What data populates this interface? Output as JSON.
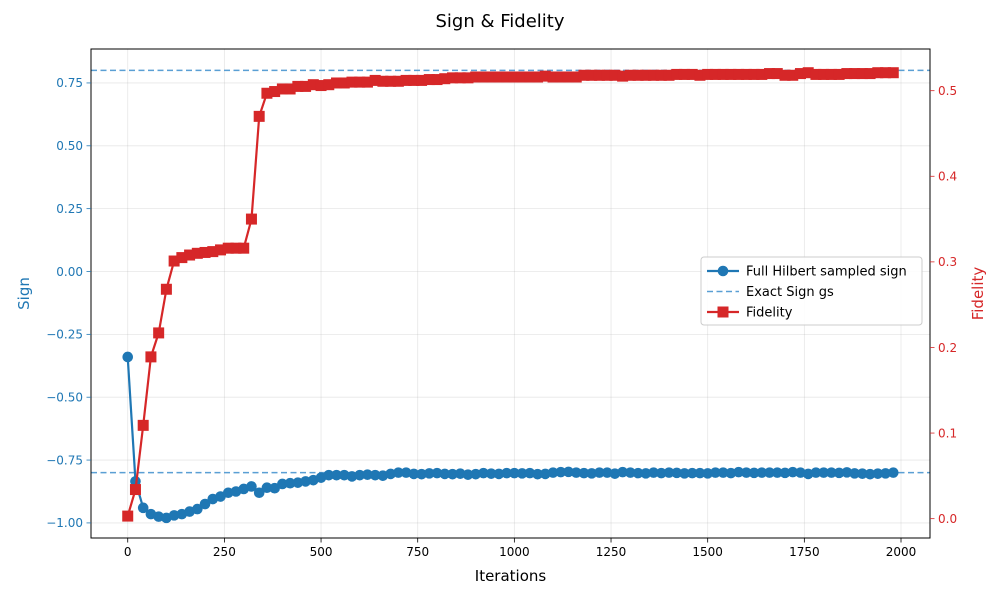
{
  "chart_data": {
    "type": "line",
    "title": "Sign & Fidelity",
    "xlabel": "Iterations",
    "ylabel_left": "Sign",
    "ylabel_right": "Fidelity",
    "xlim": [
      -95,
      2075
    ],
    "ylim_left": [
      -1.06,
      0.885
    ],
    "ylim_right": [
      -0.0226,
      0.5487
    ],
    "x_ticks": [
      0,
      250,
      500,
      750,
      1000,
      1250,
      1500,
      1750,
      2000
    ],
    "x_tick_labels": [
      "0",
      "250",
      "500",
      "750",
      "1000",
      "1250",
      "1500",
      "1750",
      "2000"
    ],
    "y_left_ticks": [
      -1.0,
      -0.75,
      -0.5,
      -0.25,
      0.0,
      0.25,
      0.5,
      0.75
    ],
    "y_left_tick_labels": [
      "−1.00",
      "−0.75",
      "−0.50",
      "−0.25",
      "0.00",
      "0.25",
      "0.50",
      "0.75"
    ],
    "y_right_ticks": [
      0.0,
      0.1,
      0.2,
      0.3,
      0.4,
      0.5
    ],
    "y_right_tick_labels": [
      "0.0",
      "0.1",
      "0.2",
      "0.3",
      "0.4",
      "0.5"
    ],
    "grid": true,
    "legend_position": "center-right",
    "reference_lines": [
      {
        "axis": "left",
        "y": 0.8
      },
      {
        "axis": "left",
        "y": -0.8
      }
    ],
    "x": [
      0,
      20,
      40,
      60,
      80,
      100,
      120,
      140,
      160,
      180,
      200,
      220,
      240,
      260,
      280,
      300,
      320,
      340,
      360,
      380,
      400,
      420,
      440,
      460,
      480,
      500,
      520,
      540,
      560,
      580,
      600,
      620,
      640,
      660,
      680,
      700,
      720,
      740,
      760,
      780,
      800,
      820,
      840,
      860,
      880,
      900,
      920,
      940,
      960,
      980,
      1000,
      1020,
      1040,
      1060,
      1080,
      1100,
      1120,
      1140,
      1160,
      1180,
      1200,
      1220,
      1240,
      1260,
      1280,
      1300,
      1320,
      1340,
      1360,
      1380,
      1400,
      1420,
      1440,
      1460,
      1480,
      1500,
      1520,
      1540,
      1560,
      1580,
      1600,
      1620,
      1640,
      1660,
      1680,
      1700,
      1720,
      1740,
      1760,
      1780,
      1800,
      1820,
      1840,
      1860,
      1880,
      1900,
      1920,
      1940,
      1960,
      1980
    ],
    "series": [
      {
        "name": "Full Hilbert sampled sign",
        "axis": "left",
        "style": "line-circle",
        "color": "#1f77b4",
        "values": [
          -0.34,
          -0.835,
          -0.94,
          -0.965,
          -0.975,
          -0.98,
          -0.97,
          -0.965,
          -0.955,
          -0.945,
          -0.925,
          -0.905,
          -0.895,
          -0.88,
          -0.875,
          -0.865,
          -0.855,
          -0.88,
          -0.86,
          -0.862,
          -0.845,
          -0.842,
          -0.84,
          -0.835,
          -0.83,
          -0.82,
          -0.81,
          -0.81,
          -0.81,
          -0.815,
          -0.81,
          -0.808,
          -0.81,
          -0.812,
          -0.805,
          -0.8,
          -0.8,
          -0.805,
          -0.806,
          -0.803,
          -0.802,
          -0.805,
          -0.806,
          -0.804,
          -0.808,
          -0.806,
          -0.802,
          -0.804,
          -0.805,
          -0.802,
          -0.802,
          -0.803,
          -0.802,
          -0.806,
          -0.805,
          -0.8,
          -0.798,
          -0.797,
          -0.8,
          -0.802,
          -0.803,
          -0.8,
          -0.8,
          -0.804,
          -0.798,
          -0.8,
          -0.802,
          -0.803,
          -0.8,
          -0.802,
          -0.8,
          -0.801,
          -0.803,
          -0.802,
          -0.802,
          -0.803,
          -0.8,
          -0.8,
          -0.802,
          -0.798,
          -0.8,
          -0.801,
          -0.8,
          -0.8,
          -0.8,
          -0.801,
          -0.798,
          -0.8,
          -0.805,
          -0.8,
          -0.8,
          -0.8,
          -0.801,
          -0.799,
          -0.803,
          -0.804,
          -0.806,
          -0.804,
          -0.803,
          -0.8
        ]
      },
      {
        "name": "Exact Sign gs",
        "axis": "left",
        "style": "dashed",
        "color": "#5a9fd4"
      },
      {
        "name": "Fidelity",
        "axis": "right",
        "style": "line-square",
        "color": "#d62728",
        "values": [
          0.003,
          0.034,
          0.109,
          0.189,
          0.217,
          0.268,
          0.301,
          0.305,
          0.308,
          0.31,
          0.311,
          0.312,
          0.314,
          0.316,
          0.316,
          0.316,
          0.35,
          0.47,
          0.497,
          0.499,
          0.502,
          0.502,
          0.505,
          0.505,
          0.507,
          0.506,
          0.507,
          0.509,
          0.509,
          0.51,
          0.51,
          0.51,
          0.512,
          0.511,
          0.511,
          0.511,
          0.512,
          0.512,
          0.512,
          0.513,
          0.513,
          0.514,
          0.515,
          0.515,
          0.515,
          0.516,
          0.516,
          0.516,
          0.516,
          0.516,
          0.516,
          0.516,
          0.516,
          0.516,
          0.517,
          0.516,
          0.516,
          0.516,
          0.516,
          0.518,
          0.518,
          0.518,
          0.518,
          0.518,
          0.517,
          0.518,
          0.518,
          0.518,
          0.518,
          0.518,
          0.518,
          0.519,
          0.519,
          0.519,
          0.518,
          0.519,
          0.519,
          0.519,
          0.519,
          0.519,
          0.519,
          0.519,
          0.519,
          0.52,
          0.52,
          0.518,
          0.518,
          0.52,
          0.521,
          0.519,
          0.519,
          0.519,
          0.519,
          0.52,
          0.52,
          0.52,
          0.52,
          0.521,
          0.521,
          0.521
        ]
      }
    ]
  }
}
